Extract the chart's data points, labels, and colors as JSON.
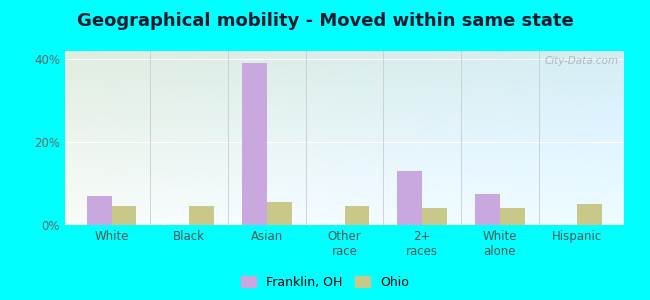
{
  "title": "Geographical mobility - Moved within same state",
  "categories": [
    "White",
    "Black",
    "Asian",
    "Other\nrace",
    "2+\nraces",
    "White\nalone",
    "Hispanic"
  ],
  "franklin_values": [
    7.0,
    0.0,
    39.0,
    0.0,
    13.0,
    7.5,
    0.0
  ],
  "ohio_values": [
    4.5,
    4.5,
    5.5,
    4.5,
    4.0,
    4.0,
    5.0
  ],
  "franklin_color": "#c9a8e0",
  "ohio_color": "#c8c88a",
  "ylim": [
    0,
    42
  ],
  "yticks": [
    0,
    20,
    40
  ],
  "ytick_labels": [
    "0%",
    "20%",
    "40%"
  ],
  "bar_width": 0.32,
  "figure_bg": "#00ffff",
  "legend_franklin": "Franklin, OH",
  "legend_ohio": "Ohio",
  "title_fontsize": 13,
  "watermark": "City-Data.com"
}
